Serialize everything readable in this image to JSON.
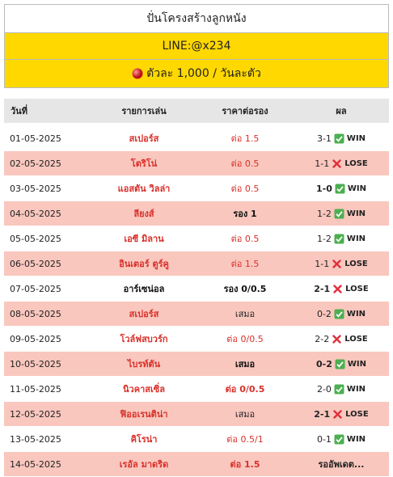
{
  "header": {
    "title": "ปั่นโครงสร้างลูกหนัง",
    "line": "LINE:@x234",
    "price": "ตัวละ 1,000 / วันละตัว"
  },
  "table": {
    "columns": [
      "วันที่",
      "รายการเล่น",
      "ราคาต่อรอง",
      "ผล"
    ],
    "rows": [
      {
        "date": "01-05-2025",
        "team": "สเปอร์ส",
        "odds": "ต่อ 1.5",
        "score": "3-1",
        "result": "WIN"
      },
      {
        "date": "02-05-2025",
        "team": "โตริโน่",
        "odds": "ต่อ 0.5",
        "score": "1-1",
        "result": "LOSE"
      },
      {
        "date": "03-05-2025",
        "team": "แอสตัน วิลล่า",
        "odds": "ต่อ 0.5",
        "score": "1-0",
        "result": "WIN"
      },
      {
        "date": "04-05-2025",
        "team": "ลียงส์",
        "odds": "รอง 1",
        "score": "1-2",
        "result": "WIN"
      },
      {
        "date": "05-05-2025",
        "team": "เอซี มิลาน",
        "odds": "ต่อ 0.5",
        "score": "1-2",
        "result": "WIN"
      },
      {
        "date": "06-05-2025",
        "team": "อินเตอร์ ตูร์คู",
        "odds": "ต่อ 1.5",
        "score": "1-1",
        "result": "LOSE"
      },
      {
        "date": "07-05-2025",
        "team": "อาร์เซน่อล",
        "odds": "รอง 0/0.5",
        "score": "2-1",
        "result": "LOSE"
      },
      {
        "date": "08-05-2025",
        "team": "สเปอร์ส",
        "odds": "เสมอ",
        "score": "0-2",
        "result": "WIN"
      },
      {
        "date": "09-05-2025",
        "team": "โวล์ฟสบวร์ก",
        "odds": "ต่อ 0/0.5",
        "score": "2-2",
        "result": "LOSE"
      },
      {
        "date": "10-05-2025",
        "team": "ไบรท์ตัน",
        "odds": "เสมอ",
        "score": "0-2",
        "result": "WIN"
      },
      {
        "date": "11-05-2025",
        "team": "นิวคาสเซิ่ล",
        "odds": "ต่อ 0/0.5",
        "score": "2-0",
        "result": "WIN"
      },
      {
        "date": "12-05-2025",
        "team": "ฟิออเรนติน่า",
        "odds": "เสมอ",
        "score": "2-1",
        "result": "LOSE"
      },
      {
        "date": "13-05-2025",
        "team": "คิโรน่า",
        "odds": "ต่อ 0.5/1",
        "score": "0-1",
        "result": "WIN"
      },
      {
        "date": "14-05-2025",
        "team": "เรอัล มาดริด",
        "odds": "ต่อ 1.5",
        "status": "รออัพเดต..."
      }
    ]
  }
}
